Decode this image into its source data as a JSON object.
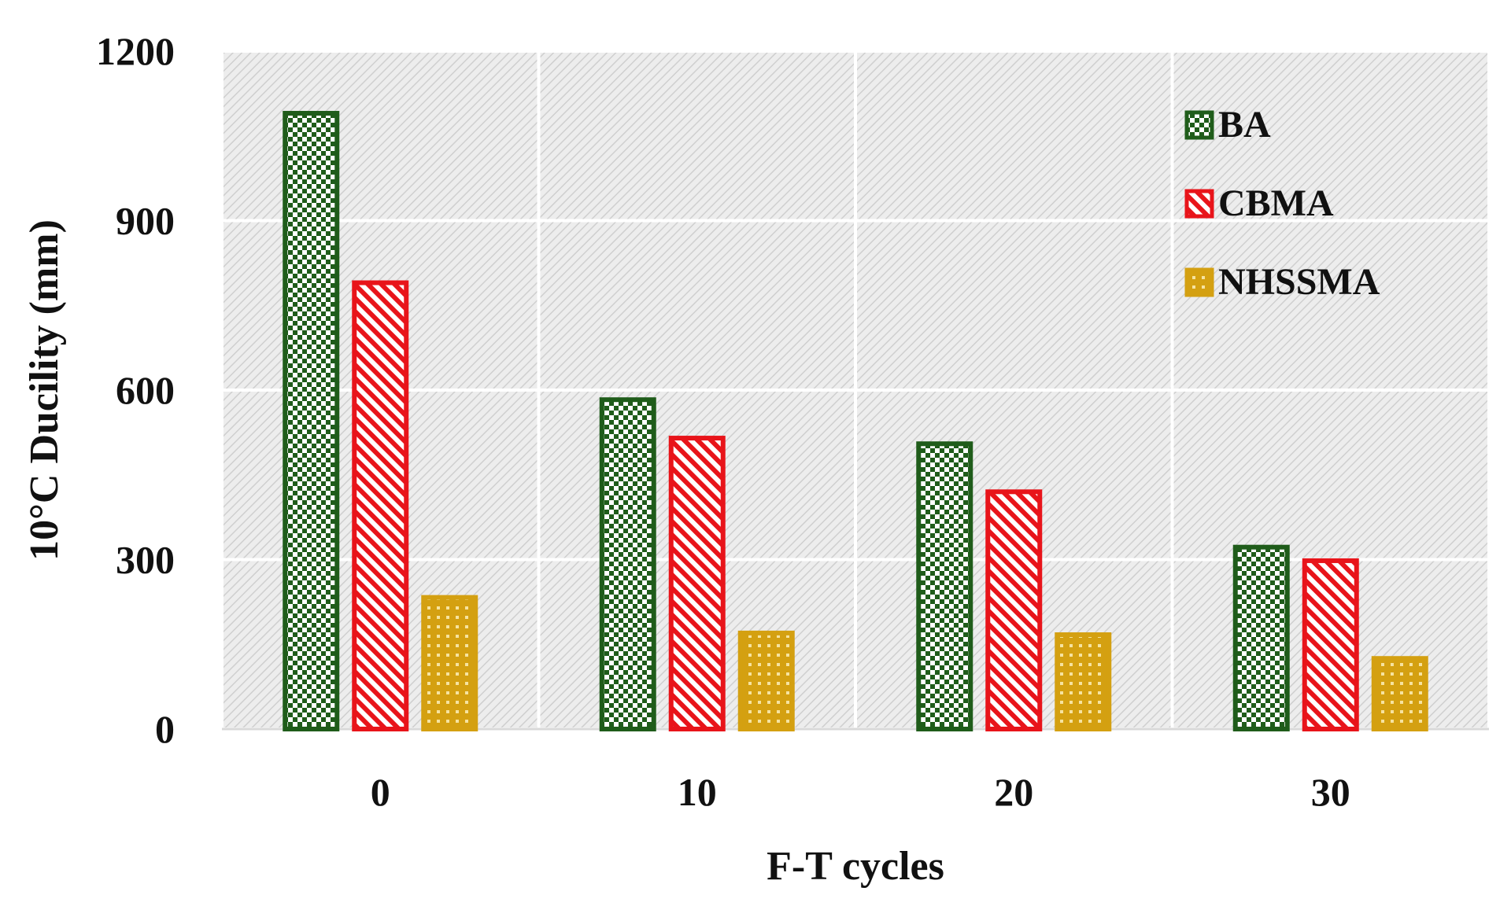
{
  "chart_data": {
    "type": "bar",
    "title": "",
    "xlabel": "F-T cycles",
    "ylabel": "10°C Ducility (mm)",
    "categories": [
      "0",
      "10",
      "20",
      "30"
    ],
    "ylim": [
      0,
      1200
    ],
    "yticks": [
      0,
      300,
      600,
      900,
      1200
    ],
    "grid": true,
    "legend_position": "top-right",
    "series": [
      {
        "name": "BA",
        "values": [
          1090,
          583,
          505,
          322
        ],
        "color": "#1f5c1a",
        "pattern": "checker"
      },
      {
        "name": "CBMA",
        "values": [
          790,
          515,
          420,
          298
        ],
        "color": "#e8141a",
        "pattern": "diagonal"
      },
      {
        "name": "NHSSMA",
        "values": [
          233,
          170,
          167,
          125
        ],
        "color": "#d4a011",
        "pattern": "dots"
      }
    ]
  }
}
